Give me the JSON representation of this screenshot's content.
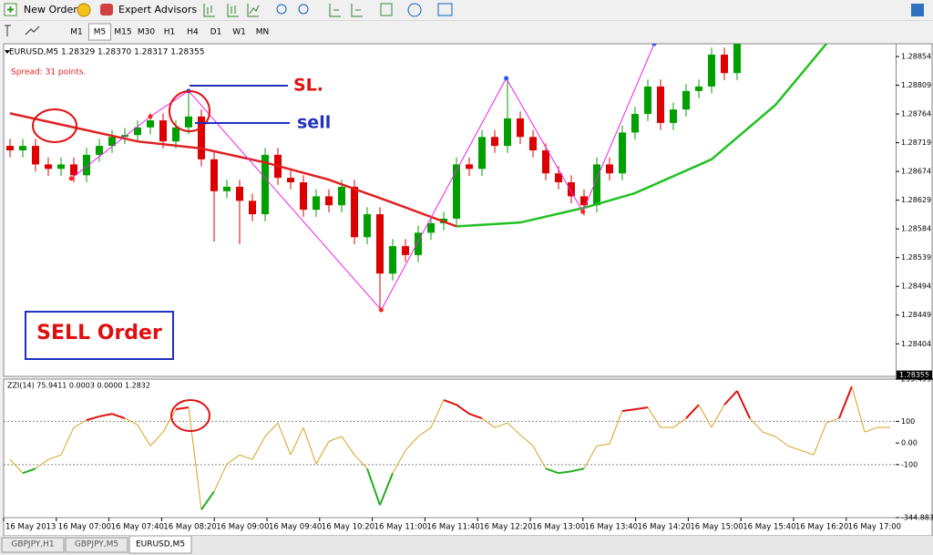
{
  "toolbar": {
    "new_order": "New Order",
    "expert_advisors": "Expert Advisors",
    "timeframes": [
      "M1",
      "M5",
      "M15",
      "M30",
      "H1",
      "H4",
      "D1",
      "W1",
      "MN"
    ],
    "active_timeframe": 1
  },
  "chart_data": [
    {
      "type": "candlestick",
      "header": "EURUSD,M5  1.28329 1.28370 1.28317 1.28355",
      "spread": "Spread: 31 points.",
      "annotations": {
        "sl": "SL.",
        "sell": "sell",
        "order": "SELL Order"
      },
      "up_color": "#00a000",
      "down_color": "#dd0000",
      "open": [
        1.28714,
        1.28707,
        1.28714,
        1.28685,
        1.28678,
        1.28685,
        1.28668,
        1.287,
        1.28714,
        1.28728,
        1.28731,
        1.28743,
        1.28754,
        1.28721,
        1.28743,
        1.2876,
        1.28693,
        1.28643,
        1.2865,
        1.28628,
        1.28607,
        1.287,
        1.28664,
        1.28657,
        1.28614,
        1.28635,
        1.28621,
        1.2865,
        1.28571,
        1.28607,
        1.28514,
        1.28557,
        1.28543,
        1.28578,
        1.28593,
        1.286,
        1.28685,
        1.28678,
        1.28728,
        1.28714,
        1.28757,
        1.28728,
        1.28707,
        1.28671,
        1.28657,
        1.28635,
        1.28621,
        1.28685,
        1.28671,
        1.28735,
        1.28764,
        1.28807,
        1.2875,
        1.28771,
        1.288,
        1.28807,
        1.28857,
        1.28828
      ],
      "high": [
        1.28725,
        1.28725,
        1.28725,
        1.28696,
        1.28696,
        1.28696,
        1.28711,
        1.28725,
        1.28739,
        1.28742,
        1.28754,
        1.28765,
        1.28765,
        1.28754,
        1.288,
        1.28771,
        1.28704,
        1.28661,
        1.28661,
        1.28639,
        1.28711,
        1.28711,
        1.28675,
        1.28668,
        1.28646,
        1.28646,
        1.28661,
        1.28661,
        1.28618,
        1.28618,
        1.28568,
        1.28568,
        1.28589,
        1.28604,
        1.28611,
        1.28696,
        1.28696,
        1.28739,
        1.28739,
        1.2882,
        1.28768,
        1.28739,
        1.28718,
        1.28682,
        1.28668,
        1.28646,
        1.28696,
        1.28696,
        1.28746,
        1.28775,
        1.28818,
        1.28818,
        1.28782,
        1.28811,
        1.28818,
        1.28868,
        1.28868,
        1.28896
      ],
      "low": [
        1.28696,
        1.28696,
        1.28674,
        1.28667,
        1.28667,
        1.28657,
        1.28657,
        1.28689,
        1.28703,
        1.28717,
        1.2872,
        1.28732,
        1.2871,
        1.2871,
        1.28732,
        1.28682,
        1.28564,
        1.28632,
        1.2856,
        1.28596,
        1.28596,
        1.28653,
        1.28646,
        1.28603,
        1.28603,
        1.2861,
        1.2861,
        1.2856,
        1.2856,
        1.2846,
        1.28503,
        1.28532,
        1.28532,
        1.28567,
        1.28582,
        1.28589,
        1.28667,
        1.28667,
        1.28703,
        1.28703,
        1.28717,
        1.28696,
        1.2866,
        1.28646,
        1.28624,
        1.28605,
        1.2861,
        1.2866,
        1.2866,
        1.28724,
        1.28753,
        1.28739,
        1.28739,
        1.2876,
        1.28789,
        1.28796,
        1.28817,
        1.28817
      ],
      "close": [
        1.28707,
        1.28714,
        1.28685,
        1.28678,
        1.28685,
        1.28668,
        1.287,
        1.28714,
        1.28728,
        1.28731,
        1.28743,
        1.28754,
        1.28721,
        1.28743,
        1.2876,
        1.28693,
        1.28643,
        1.2865,
        1.28628,
        1.28607,
        1.287,
        1.28664,
        1.28657,
        1.28614,
        1.28635,
        1.28621,
        1.2865,
        1.28571,
        1.28607,
        1.28514,
        1.28557,
        1.28543,
        1.28578,
        1.28593,
        1.286,
        1.28685,
        1.28678,
        1.28728,
        1.28714,
        1.28757,
        1.28728,
        1.28707,
        1.28671,
        1.28657,
        1.28635,
        1.28621,
        1.28685,
        1.28671,
        1.28735,
        1.28764,
        1.28807,
        1.2875,
        1.28771,
        1.288,
        1.28807,
        1.28857,
        1.28828,
        1.28885
      ],
      "series": [
        {
          "color": "#e02020",
          "x": [
            0,
            5,
            10,
            15,
            20,
            25,
            30,
            35
          ],
          "values": [
            1.28765,
            1.28743,
            1.28721,
            1.2871,
            1.28688,
            1.28661,
            1.28625,
            1.28588
          ]
        },
        {
          "color": "#22c022",
          "x": [
            35,
            40,
            45,
            49,
            55,
            60,
            64
          ],
          "values": [
            1.28588,
            1.28594,
            1.28617,
            1.2864,
            1.28693,
            1.28778,
            1.28874
          ]
        }
      ],
      "zigzag": {
        "color": "#ee22ee",
        "high_color": "#3050ff",
        "low_color": "#ff2020",
        "x": [
          4.8,
          11,
          14,
          29.1,
          38.9,
          44.9,
          50.5
        ],
        "values": [
          1.28663,
          1.2876,
          1.288,
          1.28457,
          1.2882,
          1.28611,
          1.28874
        ]
      },
      "ylim": [
        1.28353,
        1.28874
      ],
      "yticks": [
        1.28854,
        1.28809,
        1.28764,
        1.28719,
        1.28674,
        1.28629,
        1.28584,
        1.28539,
        1.28494,
        1.28449,
        1.28404
      ],
      "current_price": 1.28355
    },
    {
      "type": "line",
      "header": "ZZI(14) 75.9411 0.0003 0.0000 1.2832",
      "color": "#d9a020",
      "above_color": "#e01010",
      "below_color": "#20b020",
      "levels": [
        100,
        -100
      ],
      "values": [
        -76,
        -139,
        -118,
        -76,
        -55,
        72,
        106,
        123,
        135,
        114,
        84,
        -13,
        51,
        156,
        165,
        -308,
        -224,
        -97,
        -55,
        -76,
        30,
        93,
        -55,
        72,
        -97,
        8,
        30,
        -55,
        -118,
        -287,
        -139,
        -34,
        30,
        72,
        199,
        177,
        135,
        114,
        72,
        93,
        38,
        -13,
        -118,
        -139,
        -131,
        -118,
        -13,
        -4,
        148,
        156,
        165,
        72,
        72,
        114,
        177,
        72,
        177,
        241,
        114,
        51,
        30,
        -13,
        -34,
        -55,
        93,
        114,
        262,
        51,
        72,
        72
      ],
      "ylim": [
        -344.8833,
        295.4994
      ],
      "yticks": [
        295.4994,
        100,
        {
          "value": 0,
          "label": "0.00"
        },
        -100,
        -344.8833
      ]
    }
  ],
  "time_axis": [
    "16 May 2013",
    "16 May 07:00",
    "16 May 07:40",
    "16 May 08:20",
    "16 May 09:00",
    "16 May 09:40",
    "16 May 10:20",
    "16 May 11:00",
    "16 May 11:40",
    "16 May 12:20",
    "16 May 13:00",
    "16 May 13:40",
    "16 May 14:20",
    "16 May 15:00",
    "16 May 15:40",
    "16 May 16:20",
    "16 May 17:00"
  ],
  "tabs": [
    "GBPJPY,H1",
    "GBPJPY,M5",
    "EURUSD,M5"
  ],
  "active_tab": 2
}
